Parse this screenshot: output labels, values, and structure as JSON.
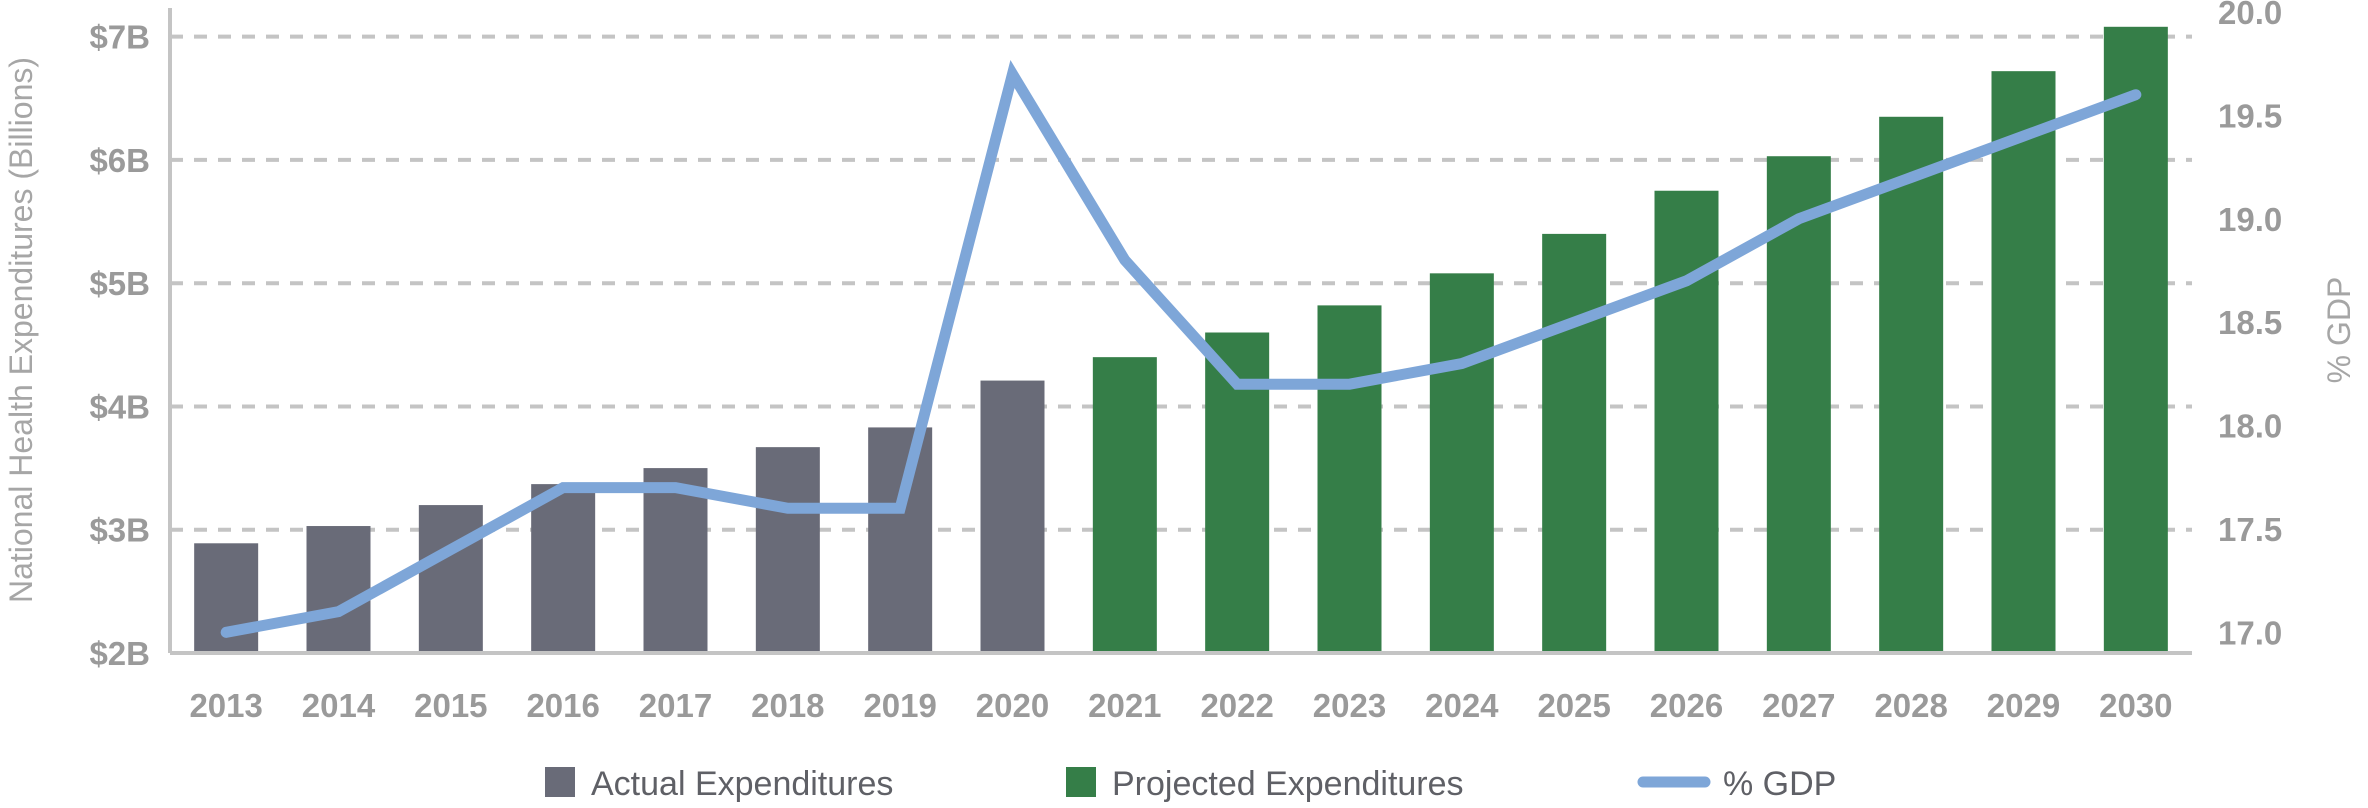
{
  "chart_data": {
    "type": "bar",
    "categories": [
      "2013",
      "2014",
      "2015",
      "2016",
      "2017",
      "2018",
      "2019",
      "2020",
      "2021",
      "2022",
      "2023",
      "2024",
      "2025",
      "2026",
      "2027",
      "2028",
      "2029",
      "2030"
    ],
    "series": [
      {
        "name": "Actual Expenditures",
        "kind": "bar",
        "axis": "left",
        "values": [
          2.89,
          3.03,
          3.2,
          3.37,
          3.5,
          3.67,
          3.83,
          4.21,
          null,
          null,
          null,
          null,
          null,
          null,
          null,
          null,
          null,
          null
        ]
      },
      {
        "name": "Projected Expenditures",
        "kind": "bar",
        "axis": "left",
        "values": [
          null,
          null,
          null,
          null,
          null,
          null,
          null,
          null,
          4.4,
          4.6,
          4.82,
          5.08,
          5.4,
          5.75,
          6.03,
          6.35,
          6.72,
          7.08
        ]
      },
      {
        "name": "% GDP",
        "kind": "line",
        "axis": "right",
        "values": [
          17.0,
          17.1,
          17.4,
          17.7,
          17.7,
          17.6,
          17.6,
          19.7,
          18.8,
          18.2,
          18.2,
          18.3,
          18.5,
          18.7,
          19.0,
          19.2,
          19.4,
          19.6
        ]
      }
    ],
    "colors": {
      "actual": "#696b78",
      "projected": "#357e48",
      "gdp_line": "#7ea6d8"
    },
    "ylabel": "National Health Expenditures (Billions)",
    "y2label": "% GDP",
    "ylim": [
      2,
      7.2
    ],
    "y2lim": [
      16.9,
      20.0
    ],
    "yticks": [
      "$7B",
      "$6B",
      "$5B",
      "$4B",
      "$3B",
      "$2B"
    ],
    "ytick_values": [
      7,
      6,
      5,
      4,
      3,
      2
    ],
    "y2ticks": [
      "20.0",
      "19.5",
      "19.0",
      "18.5",
      "18.0",
      "17.5",
      "17.0"
    ],
    "y2tick_values": [
      20.0,
      19.5,
      19.0,
      18.5,
      18.0,
      17.5,
      17.0
    ],
    "grid": true,
    "legend_position": "bottom"
  }
}
